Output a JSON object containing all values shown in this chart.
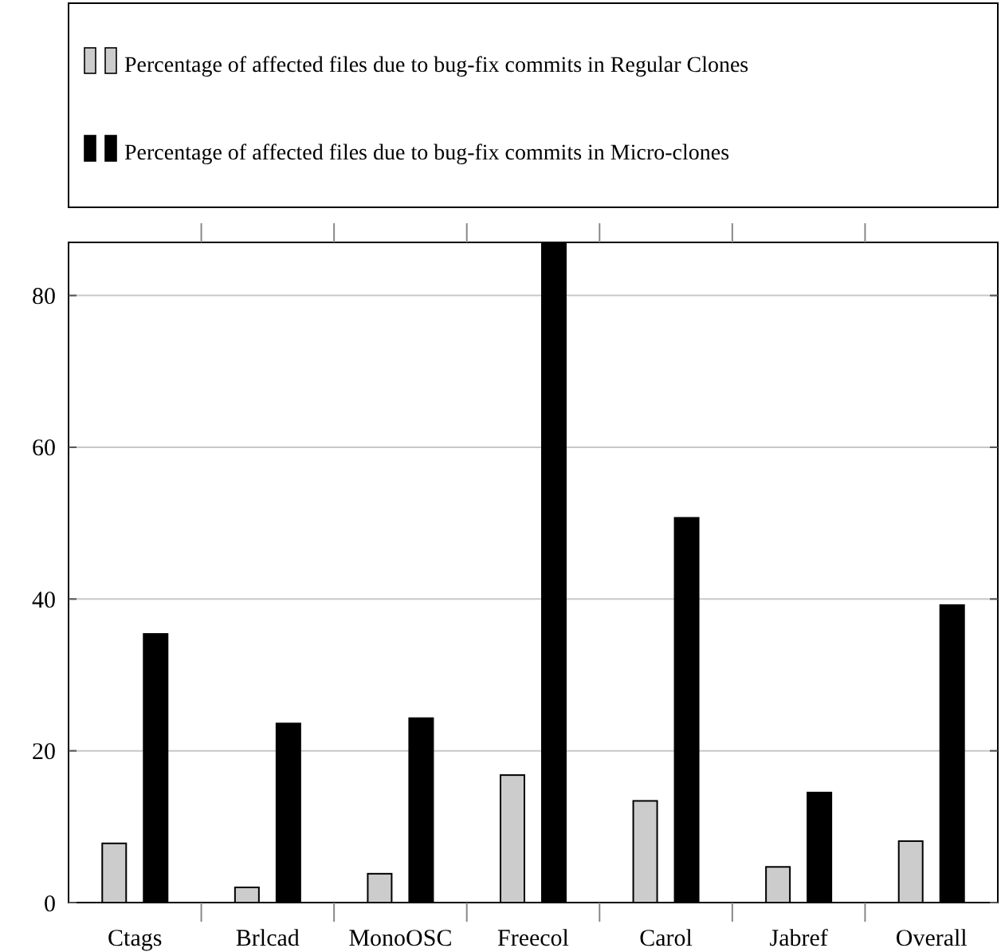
{
  "chart_data": {
    "type": "bar",
    "categories": [
      "Ctags",
      "Brlcad",
      "MonoOSC",
      "Freecol",
      "Carol",
      "Jabref",
      "Overall"
    ],
    "series": [
      {
        "name": "Percentage of affected files due to bug-fix commits in Regular Clones",
        "color": "#cccccc",
        "values": [
          7.8,
          2.0,
          3.8,
          16.8,
          13.4,
          4.7,
          8.1
        ]
      },
      {
        "name": "Percentage of affected files due to bug-fix commits in Micro-clones",
        "color": "#000000",
        "values": [
          35.4,
          23.6,
          24.3,
          87,
          50.7,
          14.5,
          39.2
        ]
      }
    ],
    "ylim": [
      0,
      87
    ],
    "yticks": [
      0,
      20,
      40,
      60,
      80
    ],
    "grid": "y",
    "legend": "top"
  }
}
